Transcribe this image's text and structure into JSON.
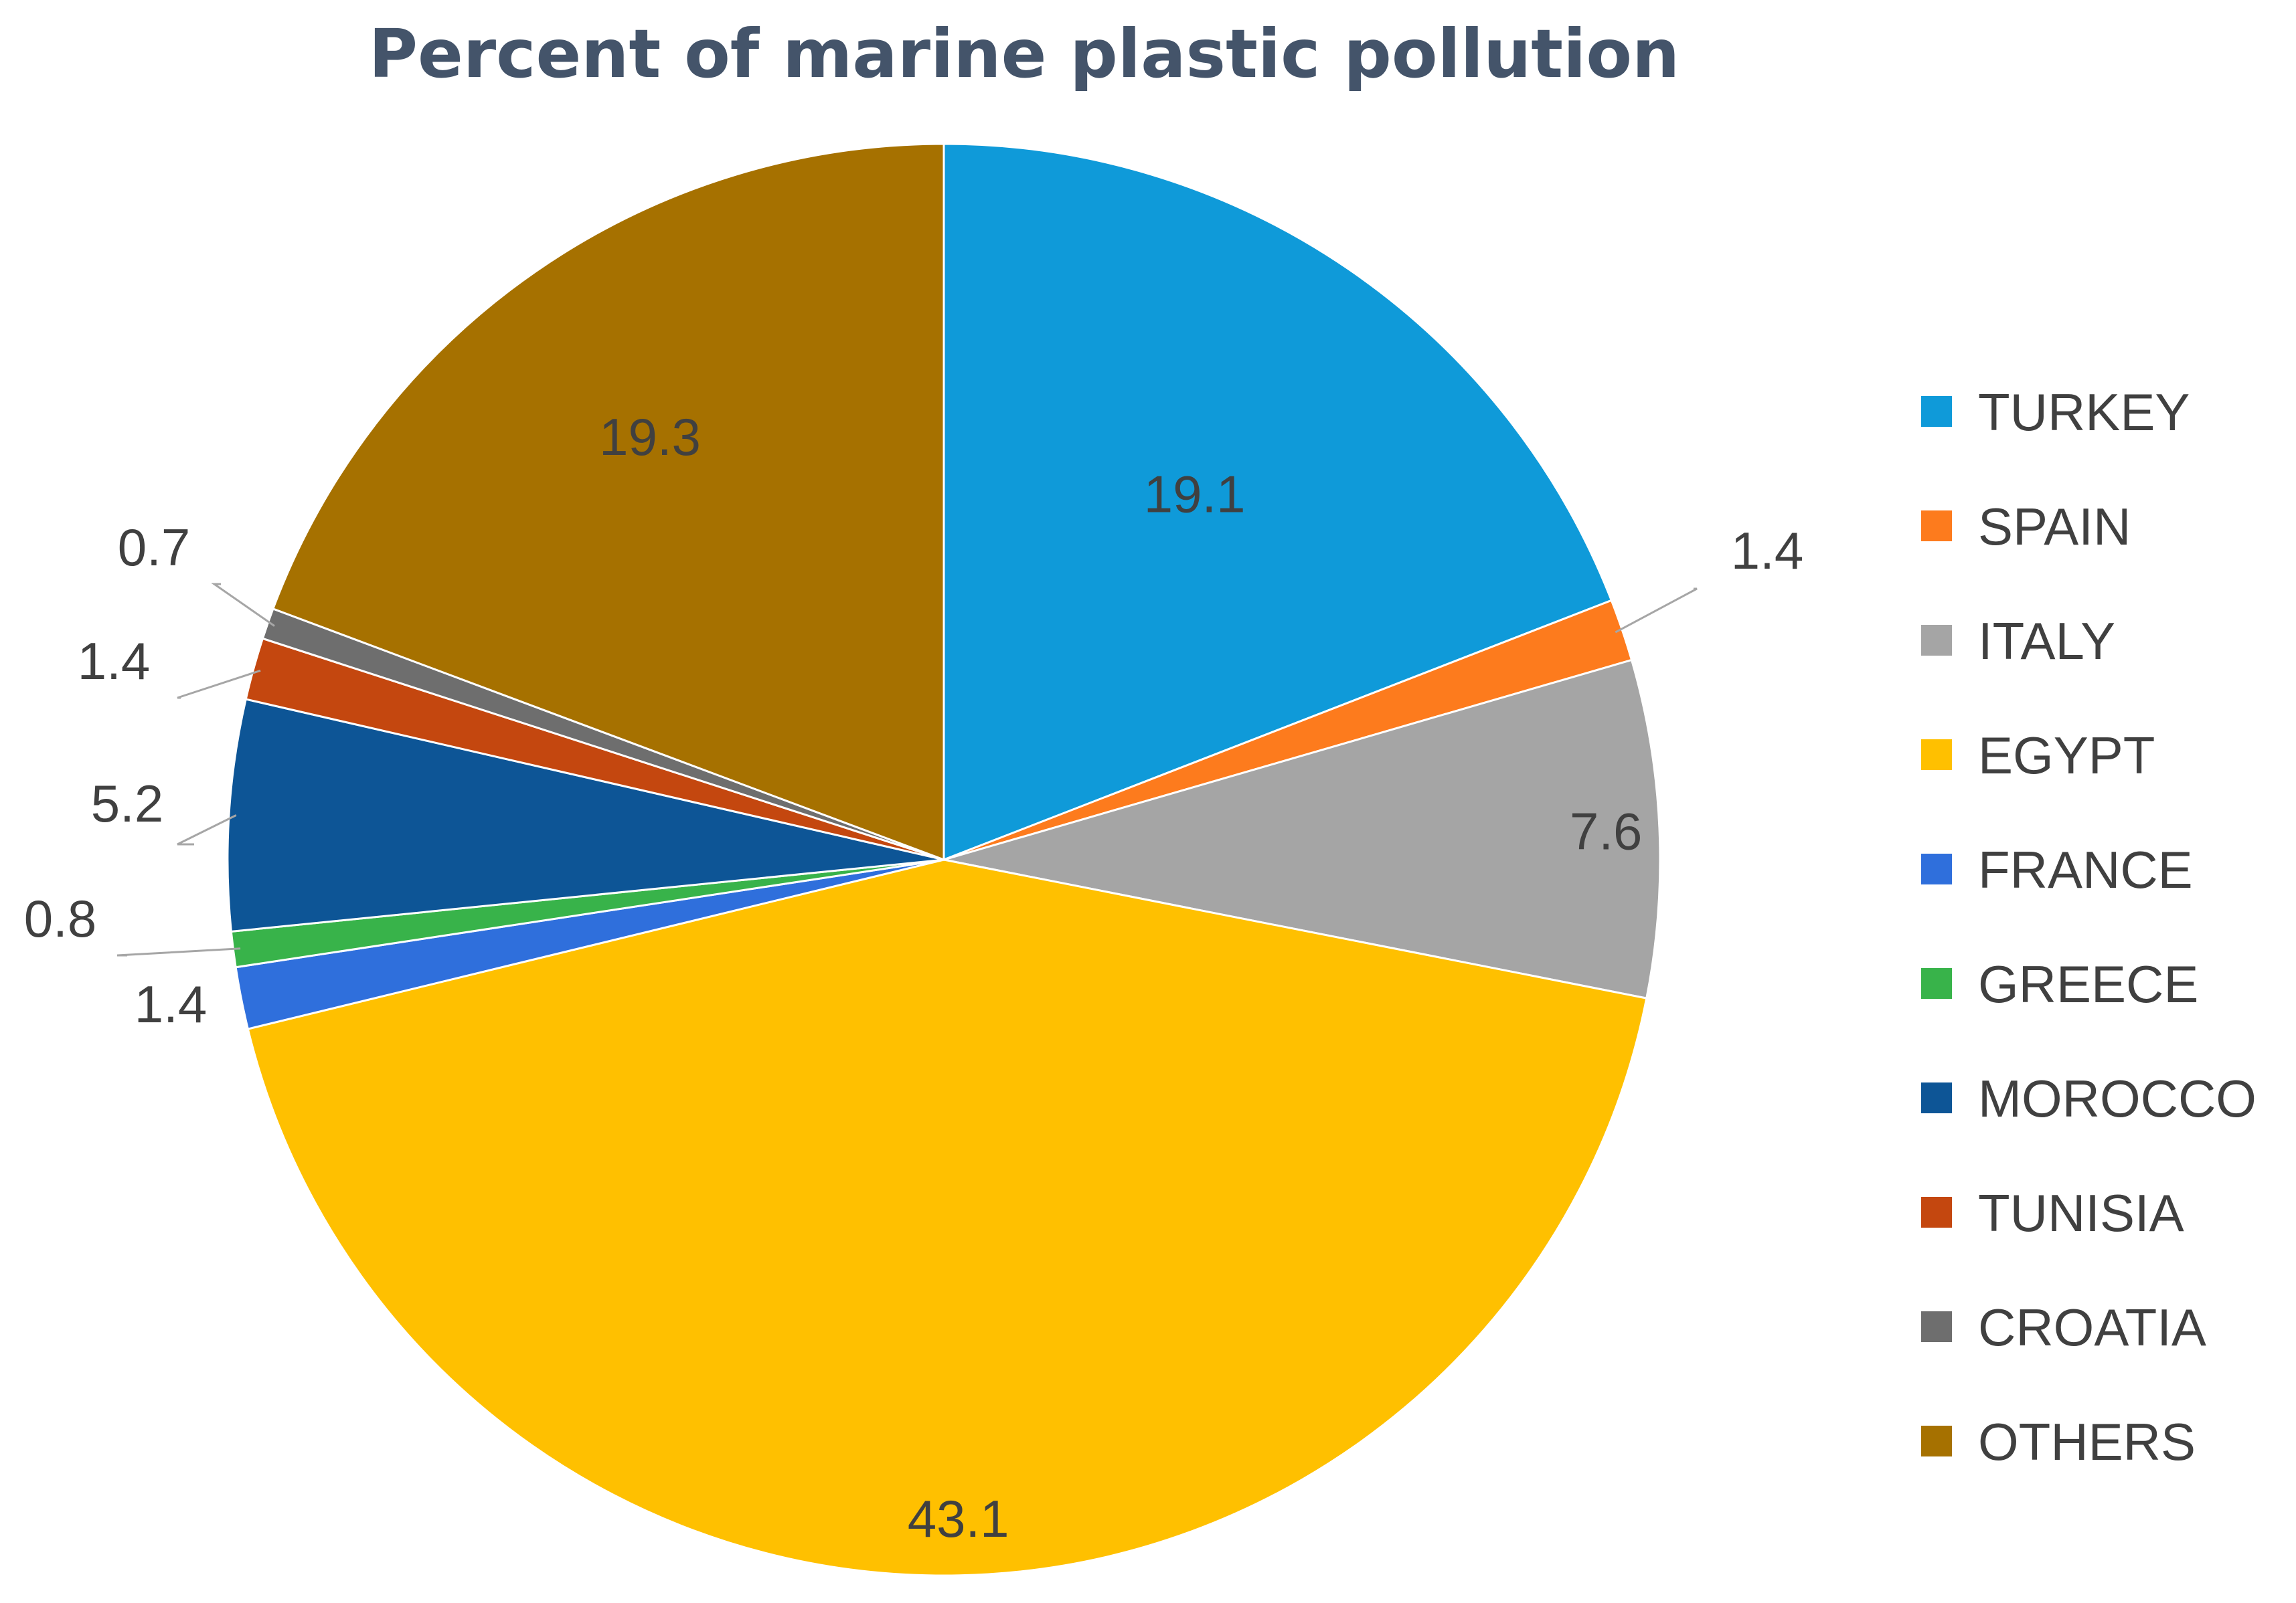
{
  "chart_data": {
    "type": "pie",
    "title": "Percent of marine plastic pollution",
    "unit": "%",
    "start_angle_deg": 0,
    "direction": "clockwise",
    "slices": [
      {
        "label": "TURKEY",
        "value": 19.1,
        "display": "19.1",
        "color": "#0f9ad9"
      },
      {
        "label": "SPAIN",
        "value": 1.4,
        "display": "1.4",
        "color": "#fd7b1d"
      },
      {
        "label": "ITALY",
        "value": 7.6,
        "display": "7.6",
        "color": "#a5a5a5"
      },
      {
        "label": "EGYPT",
        "value": 43.1,
        "display": "43.1",
        "color": "#ffc000"
      },
      {
        "label": "FRANCE",
        "value": 1.4,
        "display": "1.4",
        "color": "#2f6fdc"
      },
      {
        "label": "GREECE",
        "value": 0.8,
        "display": "0.8",
        "color": "#38b34a"
      },
      {
        "label": "MOROCCO",
        "value": 5.2,
        "display": "5.2",
        "color": "#0d5596"
      },
      {
        "label": "TUNISIA",
        "value": 1.4,
        "display": "1.4",
        "color": "#c4470f"
      },
      {
        "label": "CROATIA",
        "value": 0.7,
        "display": "0.7",
        "color": "#6e6e6e"
      },
      {
        "label": "OTHERS",
        "value": 19.3,
        "display": "19.3",
        "color": "#a67100"
      }
    ],
    "legend_position": "right"
  }
}
